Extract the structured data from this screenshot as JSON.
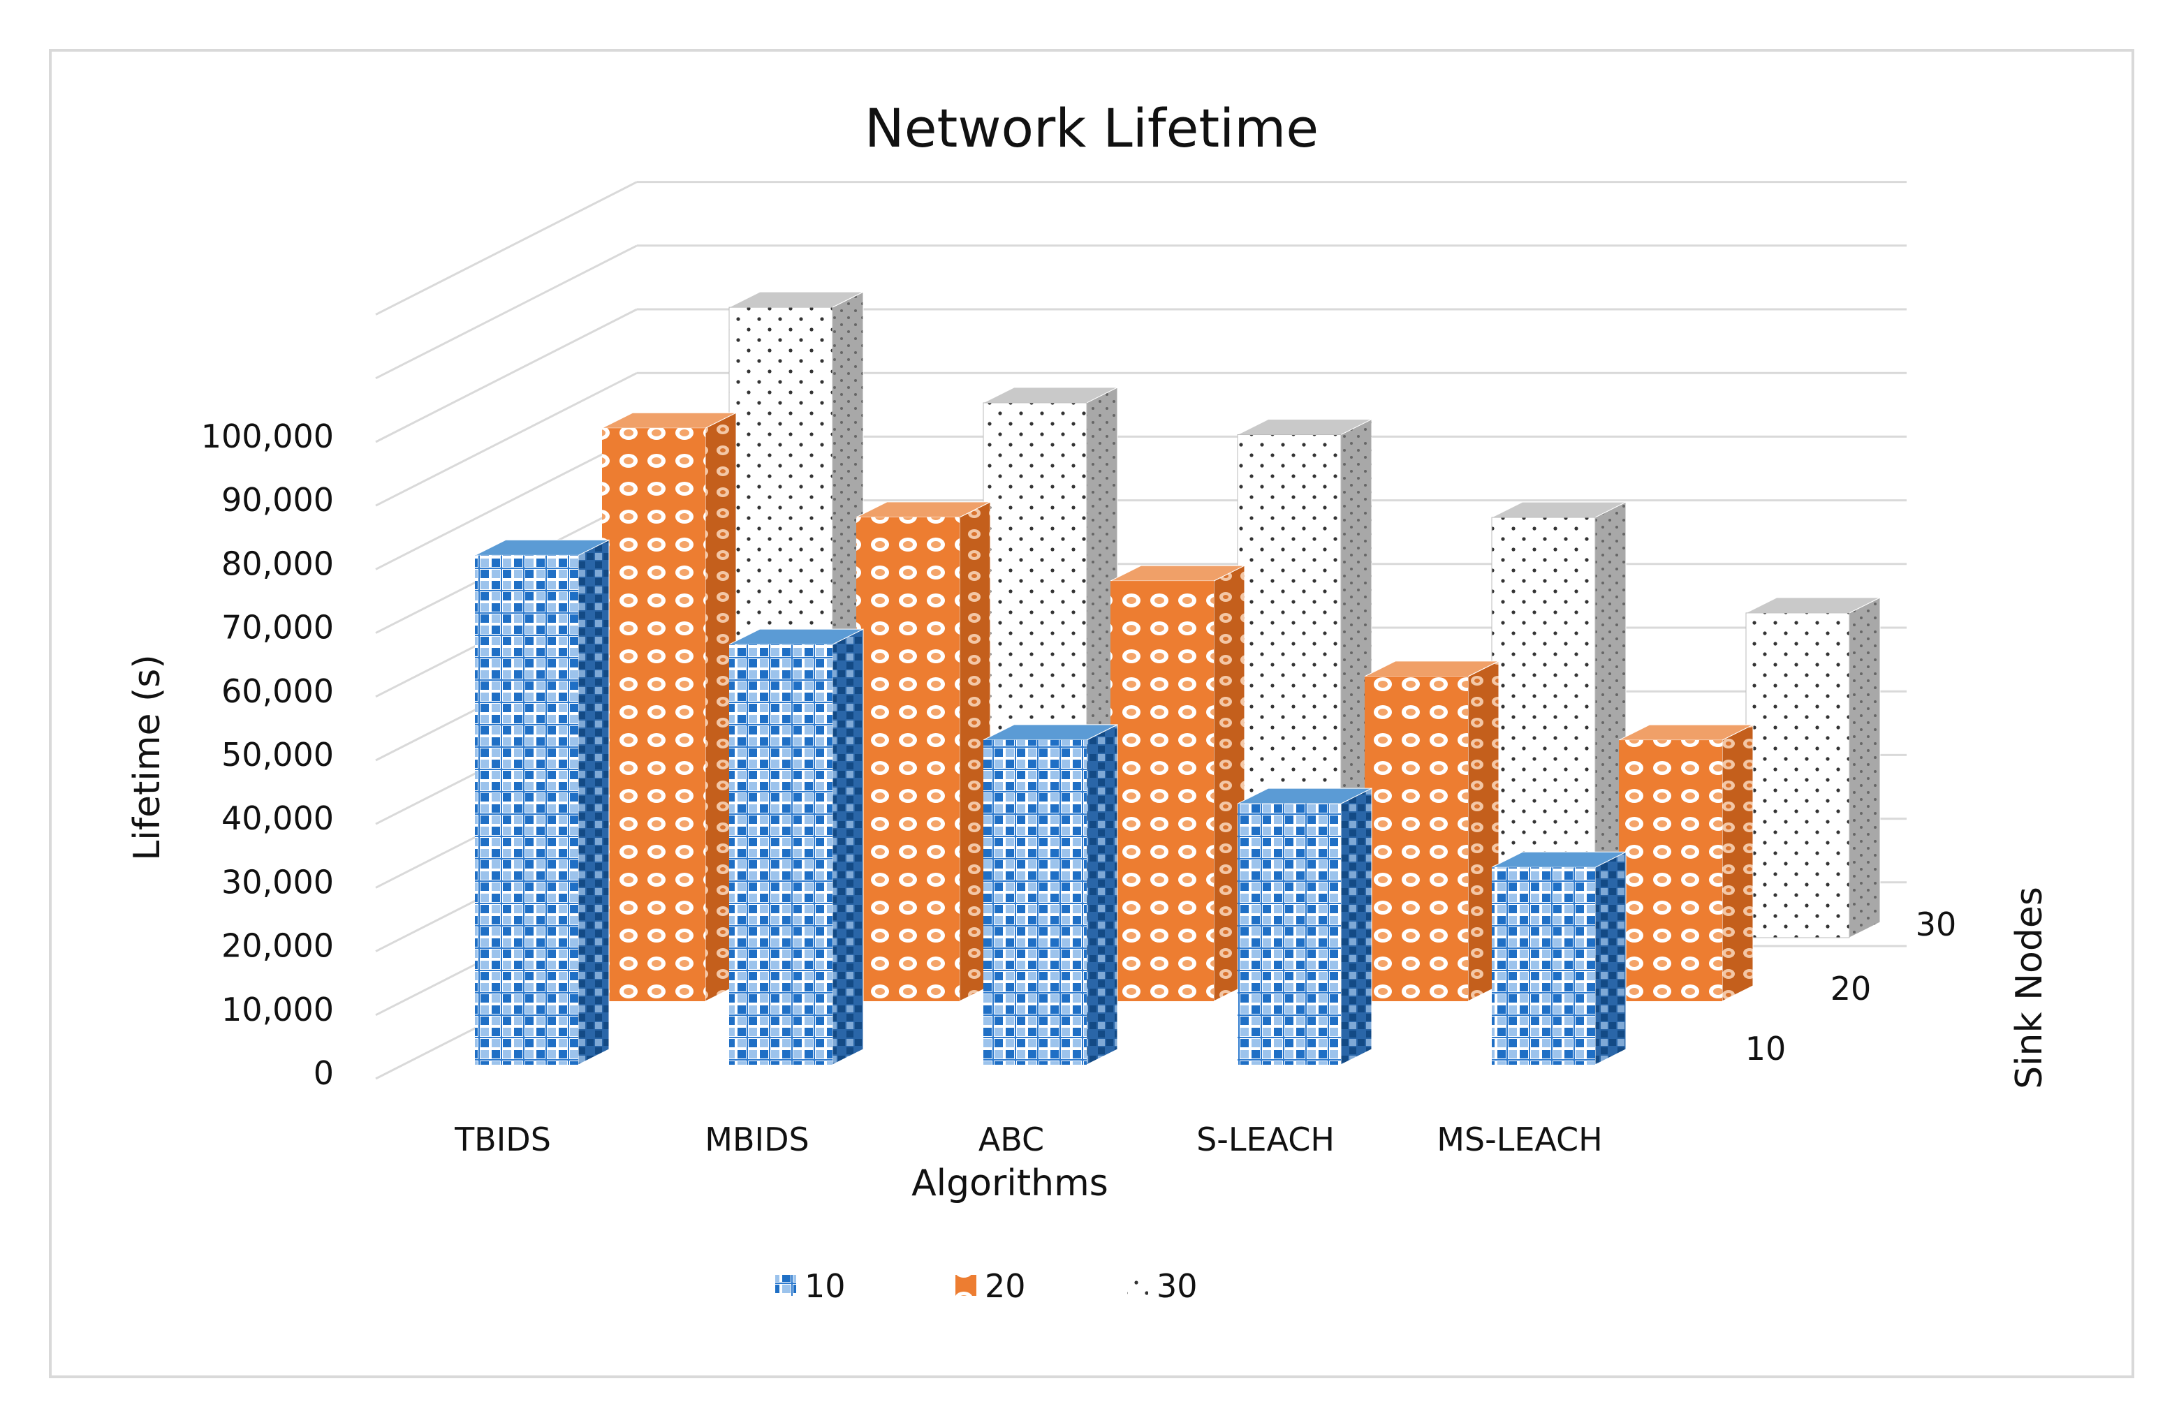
{
  "chart_data": {
    "type": "bar",
    "variant": "3d-clustered-depth",
    "title": "Network Lifetime",
    "xlabel": "Algorithms",
    "ylabel": "Lifetime (s)",
    "zlabel": "Sink Nodes",
    "categories": [
      "TBIDS",
      "MBIDS",
      "ABC",
      "S-LEACH",
      "MS-LEACH"
    ],
    "y_ticks": [
      "0",
      "10,000",
      "20,000",
      "30,000",
      "40,000",
      "50,000",
      "60,000",
      "70,000",
      "80,000",
      "90,000",
      "100,000"
    ],
    "ylim": [
      0,
      100000
    ],
    "grid": true,
    "legend_position": "bottom",
    "series": [
      {
        "name": "10",
        "depth_label": "10",
        "values": [
          80000,
          66000,
          51000,
          41000,
          31000
        ],
        "color": "#2E7BCF",
        "pattern": "checker"
      },
      {
        "name": "20",
        "depth_label": "20",
        "values": [
          90000,
          76000,
          66000,
          51000,
          41000
        ],
        "color": "#ED7D31",
        "pattern": "rings"
      },
      {
        "name": "30",
        "depth_label": "30",
        "values": [
          99000,
          84000,
          79000,
          66000,
          51000
        ],
        "color": "#A6A6A6",
        "pattern": "dots"
      }
    ]
  }
}
